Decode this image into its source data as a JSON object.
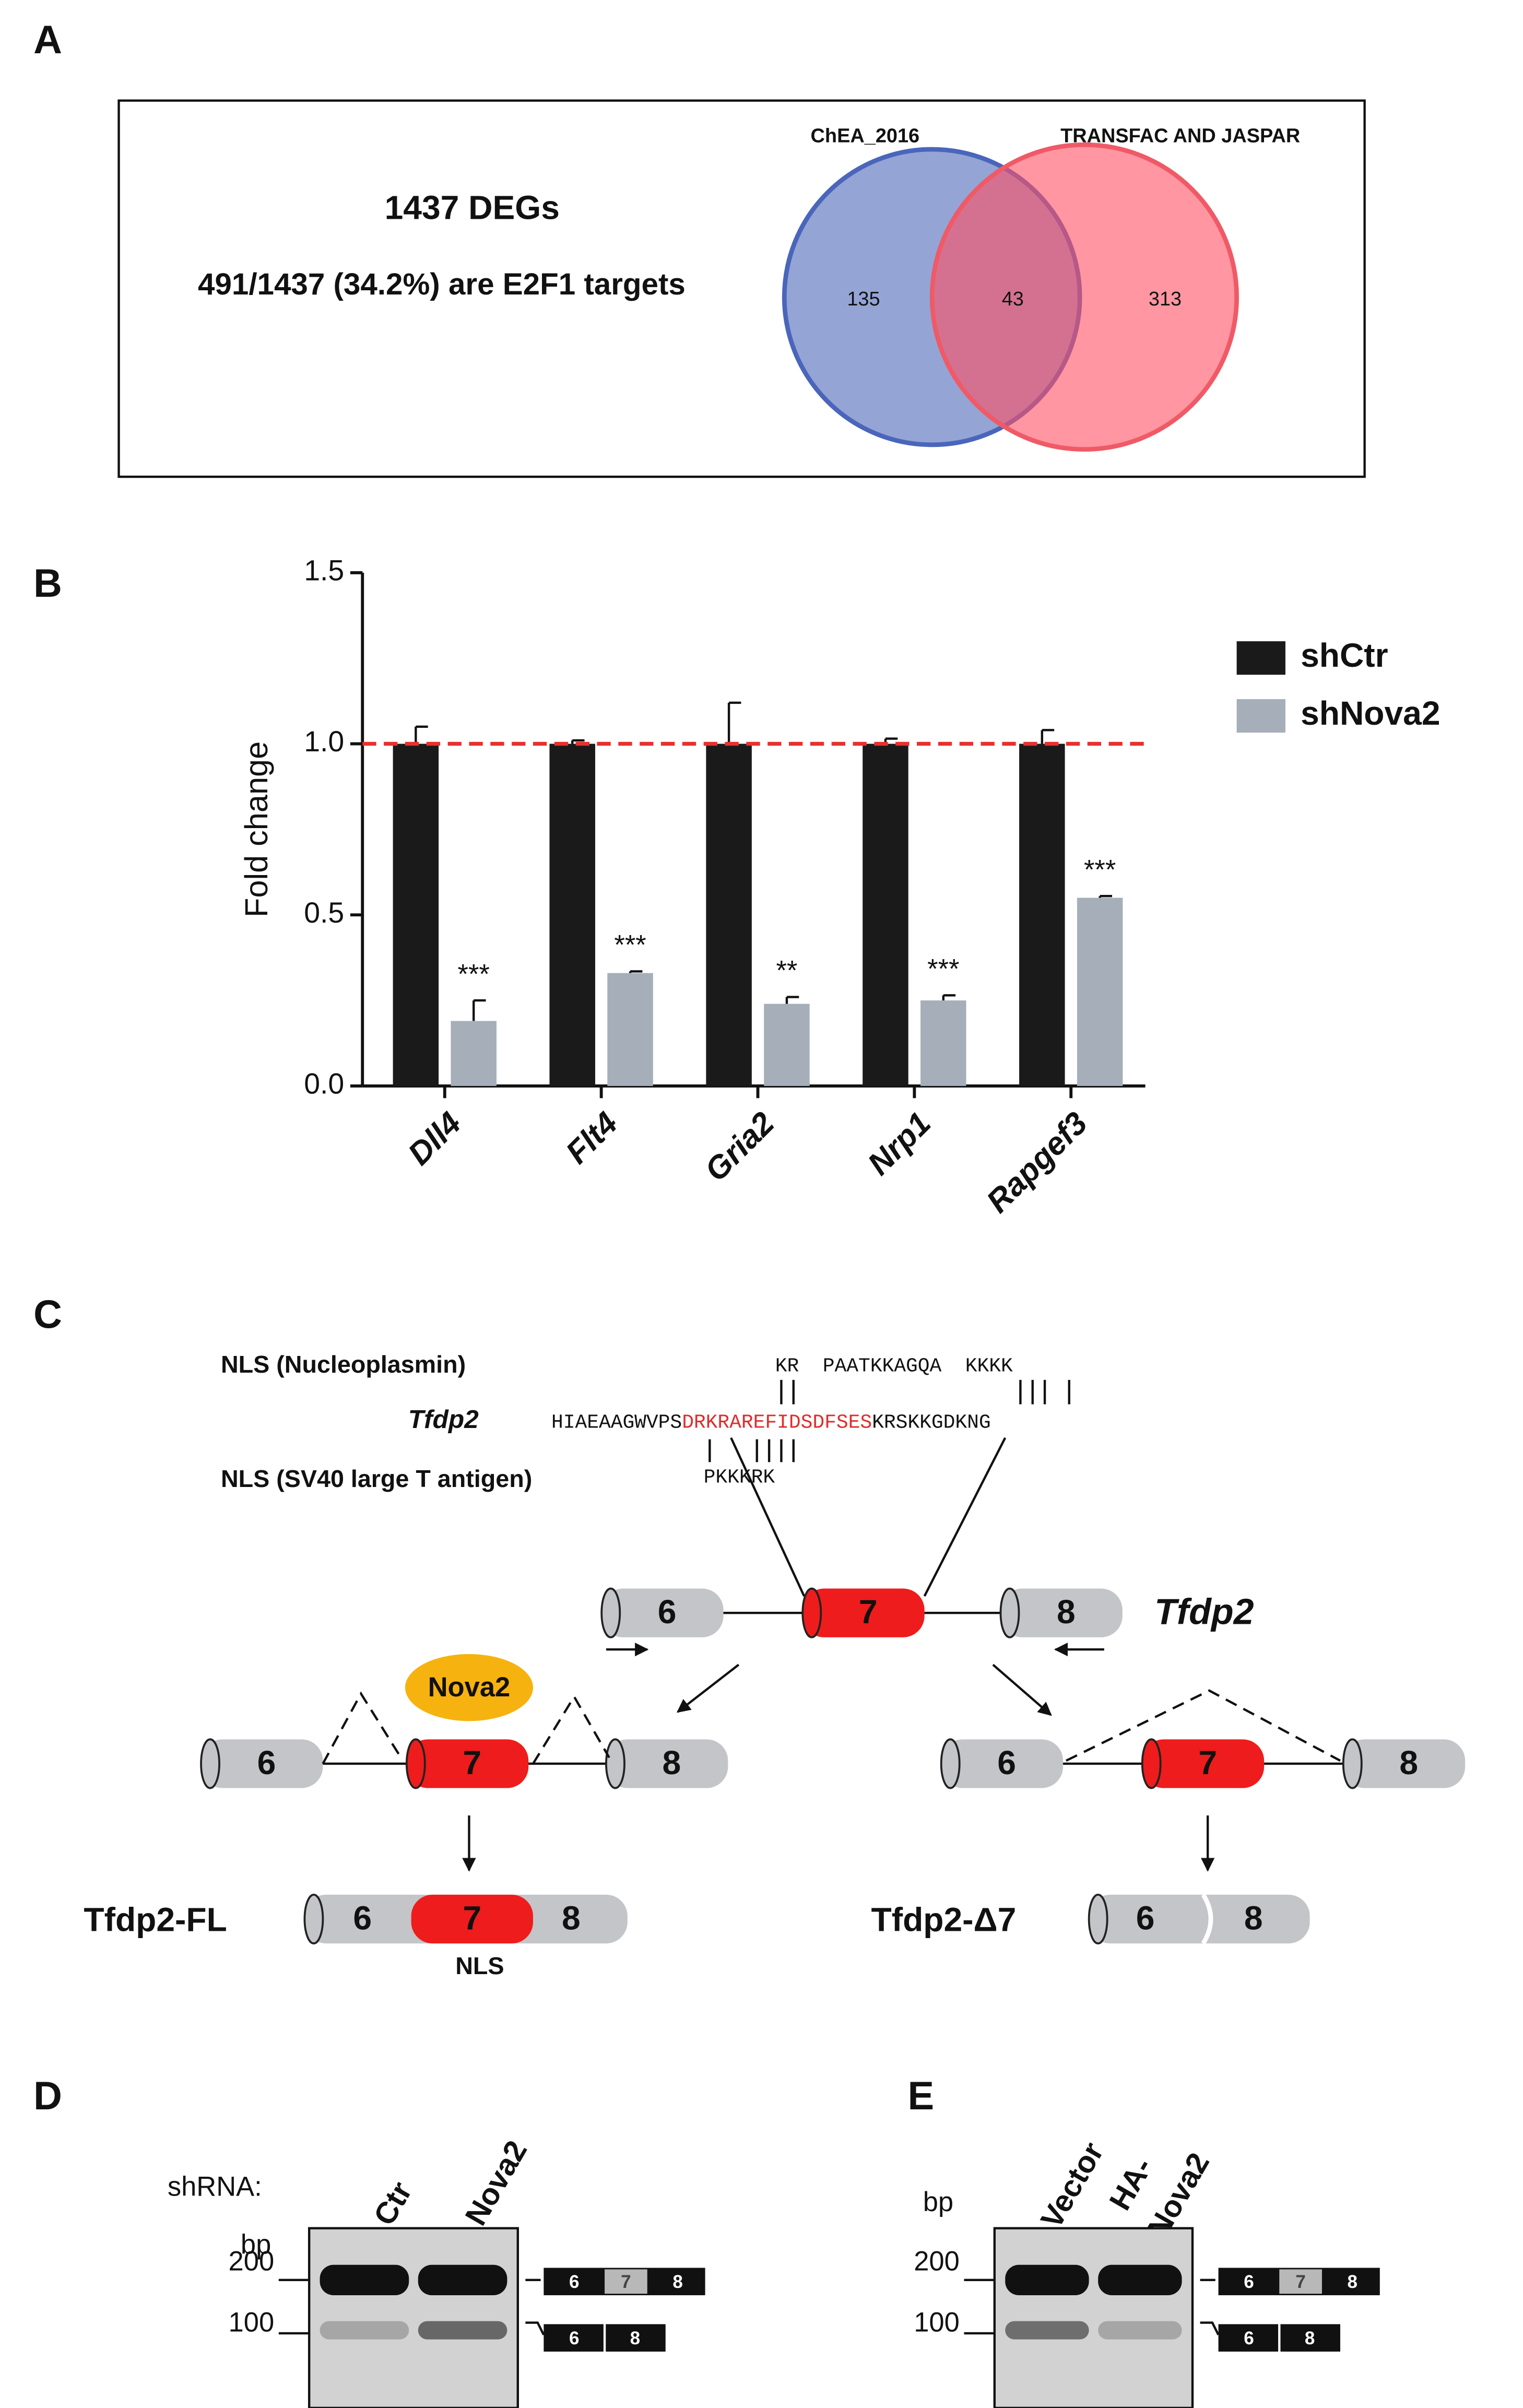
{
  "panel_labels": [
    "A",
    "B",
    "C",
    "D",
    "E"
  ],
  "panel_a": {
    "title": "1437 DEGs",
    "subtitle": "491/1437 (34.2%) are E2F1 targets",
    "venn": {
      "set_labels": [
        "ChEA_2016",
        "TRANSFAC AND JASPAR"
      ],
      "counts": [
        "135",
        "43",
        "313"
      ]
    }
  },
  "chart_data": {
    "type": "bar",
    "ylabel": "Fold change",
    "categories": [
      "Dll4",
      "Flt4",
      "Gria2",
      "Nrp1",
      "Rapgef3"
    ],
    "series": [
      {
        "name": "shCtr",
        "color": "#1a1a1a",
        "values": [
          1,
          1,
          1,
          1,
          1
        ],
        "errors": [
          0.05,
          0.01,
          0.12,
          0.015,
          0.04
        ]
      },
      {
        "name": "shNova2",
        "color": "#a6afb9",
        "values": [
          0.19,
          0.33,
          0.24,
          0.25,
          0.55
        ],
        "errors": [
          0.06,
          0.005,
          0.02,
          0.015,
          0.005
        ]
      }
    ],
    "annotations": [
      "***",
      "***",
      "**",
      "***",
      "***"
    ],
    "ylim": [
      0,
      1.5
    ],
    "yticks": [
      {
        "value": 0,
        "label": "0.0"
      },
      {
        "value": 0.5,
        "label": "0.5"
      },
      {
        "value": 1,
        "label": "1.0"
      },
      {
        "value": 1.5,
        "label": "1.5"
      }
    ],
    "reference_line": {
      "value": 1,
      "color": "#e8302f"
    },
    "legend": "right"
  },
  "panel_c": {
    "nls_nucleoplasmin": "NLS (Nucleoplasmin)",
    "nucleoplasmin_seq": "KR  PAATKKAGQA  KKKK",
    "gene": "Tfdp2",
    "seq": [
      "HIAEAAGWVPS",
      "DRKRAREFIDSDFSES",
      "KRSKKGDKNG"
    ],
    "nls_sv40": "NLS (SV40 large T antigen)",
    "sv40_seq": "PKKKRK",
    "exons": [
      "6",
      "7",
      "8"
    ],
    "protein": "Nova2",
    "isoforms": [
      "Tfdp2-FL",
      "Tfdp2-Δ7"
    ],
    "nls_label": "NLS"
  },
  "panel_d": {
    "shrna": "shRNA:",
    "bp": "bp",
    "lanes": [
      "Ctr",
      "Nova2"
    ],
    "markers": [
      "200",
      "100"
    ]
  },
  "panel_e": {
    "bp": "bp",
    "lanes": [
      "Vector",
      "HA-",
      "Nova2"
    ],
    "markers": [
      "200",
      "100"
    ]
  }
}
